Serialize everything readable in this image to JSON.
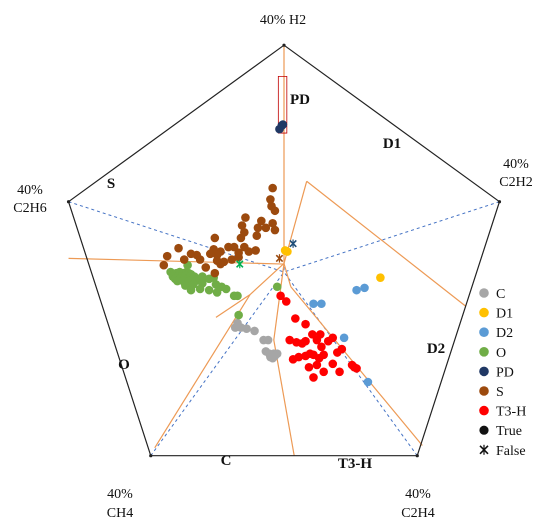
{
  "chart_data": {
    "type": "scatter",
    "chart_kind": "Duval pentagon",
    "vertices": [
      {
        "percent": "40%",
        "gas": "H2"
      },
      {
        "percent": "40%",
        "gas": "C2H2"
      },
      {
        "percent": "40%",
        "gas": "C2H4"
      },
      {
        "percent": "40%",
        "gas": "CH4"
      },
      {
        "percent": "40%",
        "gas": "C2H6"
      }
    ],
    "zones": [
      "PD",
      "D1",
      "D2",
      "T3-H",
      "C",
      "O",
      "S"
    ],
    "series": [
      {
        "name": "C",
        "color": "#a6a6a6",
        "points": [
          [
            -8.2,
            -9.0
          ],
          [
            -8.6,
            -9.8
          ],
          [
            -7.6,
            -9.8
          ],
          [
            -6.6,
            -10.0
          ],
          [
            -5.2,
            -10.4
          ],
          [
            -3.6,
            -12.0
          ],
          [
            -2.8,
            -12.0
          ],
          [
            -3.2,
            -14.0
          ],
          [
            -2.6,
            -14.4
          ],
          [
            -1.8,
            -14.4
          ],
          [
            -2.4,
            -15.0
          ],
          [
            -2.0,
            -15.2
          ],
          [
            -1.6,
            -14.8
          ],
          [
            -1.2,
            -14.4
          ]
        ]
      },
      {
        "name": "D1",
        "color": "#ffc000",
        "points": [
          [
            0.2,
            3.8
          ],
          [
            0.6,
            3.6
          ],
          [
            17.0,
            -1.0
          ]
        ]
      },
      {
        "name": "D2",
        "color": "#5b9bd5",
        "points": [
          [
            5.2,
            -5.6
          ],
          [
            6.6,
            -5.6
          ],
          [
            12.8,
            -3.2
          ],
          [
            14.2,
            -2.8
          ],
          [
            10.6,
            -11.6
          ],
          [
            14.8,
            -19.4
          ]
        ]
      },
      {
        "name": "O",
        "color": "#70ad47",
        "points": [
          [
            -20.0,
            0.0
          ],
          [
            -19.4,
            -0.4
          ],
          [
            -19.0,
            -0.2
          ],
          [
            -18.4,
            0.0
          ],
          [
            -17.8,
            -0.2
          ],
          [
            -17.2,
            0.0
          ],
          [
            -16.8,
            -0.2
          ],
          [
            -16.4,
            -0.4
          ],
          [
            -19.6,
            -0.8
          ],
          [
            -18.8,
            -0.8
          ],
          [
            -18.0,
            -0.8
          ],
          [
            -17.4,
            -0.6
          ],
          [
            -16.6,
            -0.8
          ],
          [
            -15.8,
            -0.8
          ],
          [
            -19.2,
            -1.2
          ],
          [
            -18.4,
            -1.2
          ],
          [
            -17.6,
            -1.2
          ],
          [
            -16.8,
            -1.2
          ],
          [
            -16.0,
            -1.2
          ],
          [
            -15.2,
            -1.2
          ],
          [
            -18.8,
            -1.6
          ],
          [
            -17.8,
            -1.6
          ],
          [
            -16.8,
            -1.6
          ],
          [
            -15.6,
            -1.6
          ],
          [
            -14.4,
            -1.4
          ],
          [
            -13.2,
            -1.2
          ],
          [
            -12.4,
            -1.0
          ],
          [
            -17.4,
            -2.4
          ],
          [
            -16.0,
            -2.2
          ],
          [
            -14.4,
            -2.0
          ],
          [
            -12.0,
            -2.2
          ],
          [
            -11.0,
            -2.6
          ],
          [
            -10.2,
            -3.0
          ],
          [
            -16.4,
            -3.2
          ],
          [
            -14.8,
            -3.0
          ],
          [
            -13.2,
            -3.2
          ],
          [
            -11.8,
            -3.6
          ],
          [
            -8.8,
            -4.2
          ],
          [
            -8.2,
            -4.2
          ],
          [
            -8.0,
            -7.6
          ],
          [
            -1.2,
            -2.6
          ],
          [
            -17.0,
            1.2
          ],
          [
            -14.4,
            -0.8
          ]
        ]
      },
      {
        "name": "PD",
        "color": "#203864",
        "points": [
          [
            -0.8,
            25.2
          ],
          [
            -0.4,
            25.8
          ],
          [
            -0.2,
            26.0
          ]
        ]
      },
      {
        "name": "S",
        "color": "#9c4a0e",
        "points": [
          [
            -2.0,
            14.8
          ],
          [
            -2.4,
            12.8
          ],
          [
            -2.2,
            11.6
          ],
          [
            -1.6,
            10.8
          ],
          [
            -2.0,
            8.6
          ],
          [
            -1.6,
            7.4
          ],
          [
            -3.2,
            7.8
          ],
          [
            -4.0,
            9.0
          ],
          [
            -4.6,
            7.8
          ],
          [
            -4.8,
            6.4
          ],
          [
            -6.8,
            9.6
          ],
          [
            -7.4,
            8.2
          ],
          [
            -7.0,
            7.0
          ],
          [
            -7.6,
            6.0
          ],
          [
            -8.0,
            3.4
          ],
          [
            -5.0,
            3.8
          ],
          [
            -6.2,
            3.6
          ],
          [
            -7.0,
            4.4
          ],
          [
            -8.8,
            4.4
          ],
          [
            -9.8,
            4.4
          ],
          [
            -11.2,
            3.6
          ],
          [
            -11.8,
            3.0
          ],
          [
            -12.4,
            4.0
          ],
          [
            -12.2,
            6.0
          ],
          [
            -13.0,
            3.2
          ],
          [
            -14.8,
            2.2
          ],
          [
            -15.4,
            3.0
          ],
          [
            -16.4,
            3.2
          ],
          [
            -17.6,
            2.2
          ],
          [
            -18.6,
            4.2
          ],
          [
            -20.6,
            2.8
          ],
          [
            -21.2,
            1.2
          ],
          [
            -13.8,
            0.8
          ],
          [
            -11.8,
            2.0
          ],
          [
            -12.2,
            -0.2
          ],
          [
            -10.6,
            1.8
          ],
          [
            -9.2,
            2.2
          ],
          [
            -8.0,
            2.6
          ],
          [
            -11.2,
            1.4
          ]
        ]
      },
      {
        "name": "T3-H",
        "color": "#ff0000",
        "points": [
          [
            -0.6,
            -4.2
          ],
          [
            0.4,
            -5.2
          ],
          [
            2.0,
            -8.2
          ],
          [
            3.8,
            -9.2
          ],
          [
            5.0,
            -11.0
          ],
          [
            3.8,
            -12.2
          ],
          [
            5.8,
            -12.0
          ],
          [
            6.4,
            -11.0
          ],
          [
            7.8,
            -12.2
          ],
          [
            8.6,
            -11.6
          ],
          [
            6.6,
            -13.2
          ],
          [
            1.0,
            -12.0
          ],
          [
            2.2,
            -12.4
          ],
          [
            3.2,
            -12.6
          ],
          [
            4.6,
            -14.4
          ],
          [
            3.8,
            -14.8
          ],
          [
            2.6,
            -15.0
          ],
          [
            1.6,
            -15.4
          ],
          [
            5.2,
            -14.6
          ],
          [
            6.2,
            -15.2
          ],
          [
            7.0,
            -14.6
          ],
          [
            8.6,
            -16.2
          ],
          [
            9.4,
            -14.2
          ],
          [
            10.2,
            -13.6
          ],
          [
            12.0,
            -16.4
          ],
          [
            12.4,
            -16.8
          ],
          [
            12.8,
            -17.0
          ],
          [
            5.8,
            -16.4
          ],
          [
            7.0,
            -17.6
          ],
          [
            9.8,
            -17.6
          ],
          [
            5.2,
            -18.6
          ],
          [
            4.4,
            -16.8
          ]
        ]
      }
    ],
    "false_markers": [
      {
        "color": "#9c4a0e",
        "point": [
          -0.8,
          2.4
        ]
      },
      {
        "color": "#1f4e79",
        "point": [
          1.6,
          5.0
        ]
      },
      {
        "color": "#00b050",
        "point": [
          -7.8,
          1.4
        ]
      }
    ],
    "legend_markers": [
      {
        "label": "True",
        "marker": "dot"
      },
      {
        "label": "False",
        "marker": "x"
      }
    ],
    "legend_position": "right",
    "xlim": [
      -40,
      40
    ],
    "ylim": [
      -40,
      40
    ]
  }
}
